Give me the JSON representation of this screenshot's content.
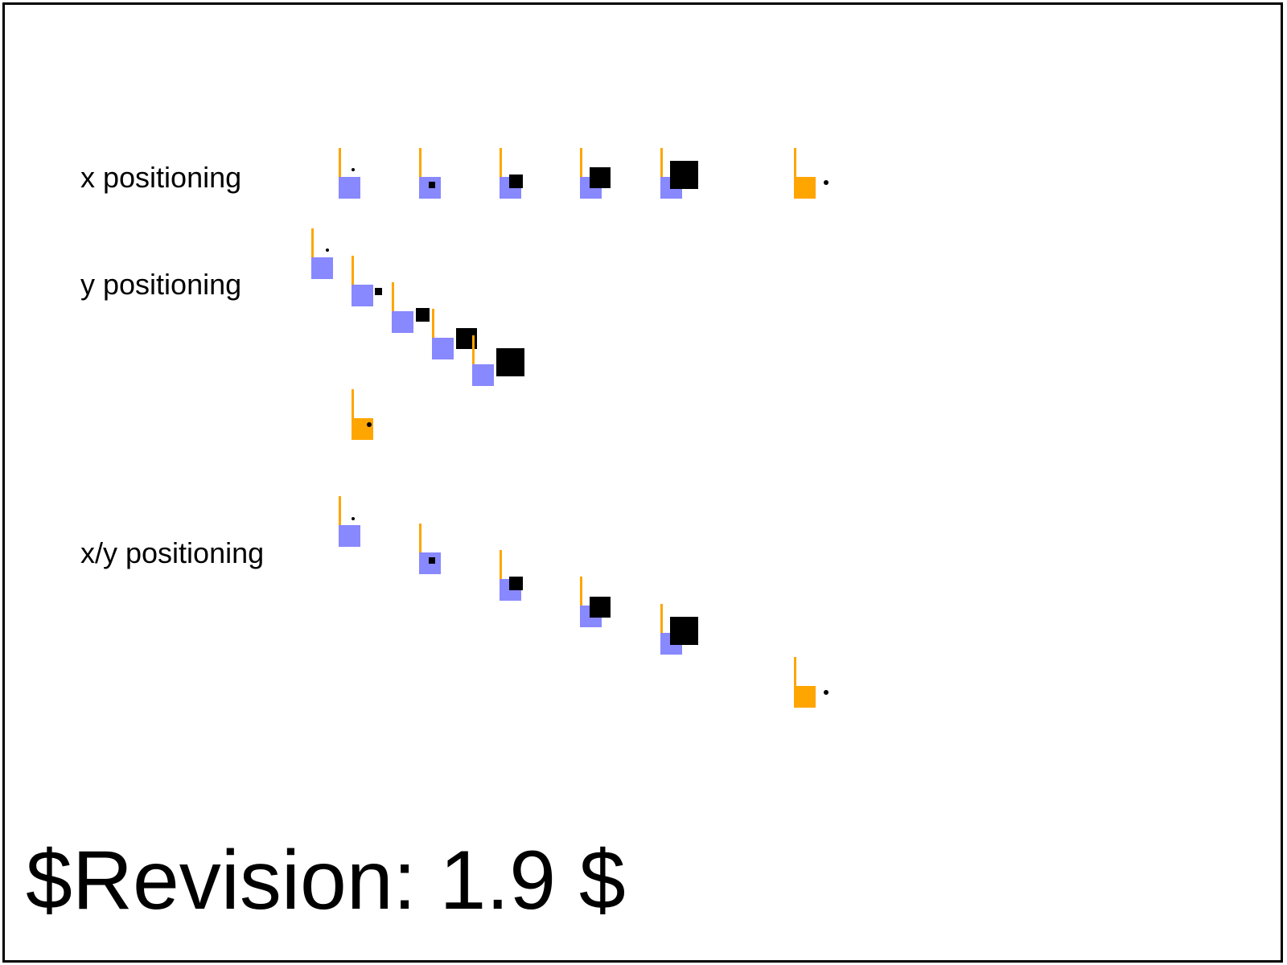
{
  "labels": {
    "x_positioning": "x positioning",
    "y_positioning": "y positioning",
    "xy_positioning": "x/y positioning"
  },
  "footer": {
    "revision": "$Revision: 1.9 $"
  },
  "colors": {
    "reference_square": "#8888ff",
    "highlight_square": "#ffa500",
    "marker": "#000000",
    "tick": "#ffa500",
    "frame": "#000000"
  },
  "icons": {
    "reference_square": "square-icon",
    "marker": "square-icon"
  }
}
